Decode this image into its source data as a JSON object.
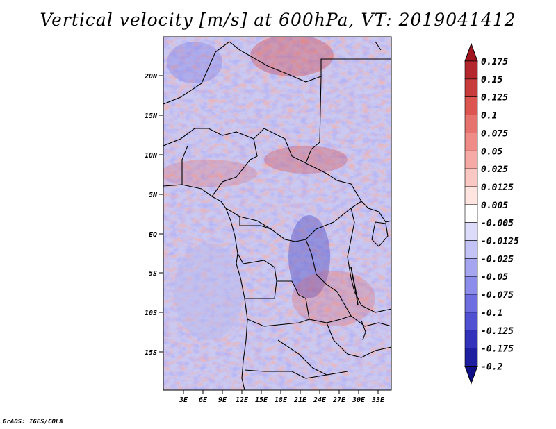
{
  "title": "Vertical velocity [m/s] at 600hPa, VT: 2019041412",
  "footer": "GrADS: IGES/COLA",
  "map": {
    "lon_range": [
      0,
      35
    ],
    "lat_range": [
      -20,
      25
    ],
    "lon_ticks": [
      "3E",
      "6E",
      "9E",
      "12E",
      "15E",
      "18E",
      "21E",
      "24E",
      "27E",
      "30E",
      "33E"
    ],
    "lat_ticks": [
      "20N",
      "15N",
      "10N",
      "5N",
      "EQ",
      "5S",
      "10S",
      "15S"
    ]
  },
  "colorbar": {
    "labels": [
      "0.175",
      "0.15",
      "0.125",
      "0.1",
      "0.075",
      "0.05",
      "0.025",
      "0.0125",
      "0.005",
      "-0.005",
      "-0.0125",
      "-0.025",
      "-0.05",
      "-0.075",
      "-0.1",
      "-0.125",
      "-0.175",
      "-0.2"
    ],
    "colors": [
      "#a0141e",
      "#b4282d",
      "#c83c3c",
      "#dc5550",
      "#e6736e",
      "#f08c87",
      "#f5aaa5",
      "#fac8c3",
      "#ffe4e0",
      "#ffffff",
      "#dcdcfa",
      "#c3c3f5",
      "#a5a5f0",
      "#8c8ceb",
      "#6e6ee1",
      "#5050d2",
      "#3232bb",
      "#1e1ea0",
      "#0f0f87"
    ]
  }
}
